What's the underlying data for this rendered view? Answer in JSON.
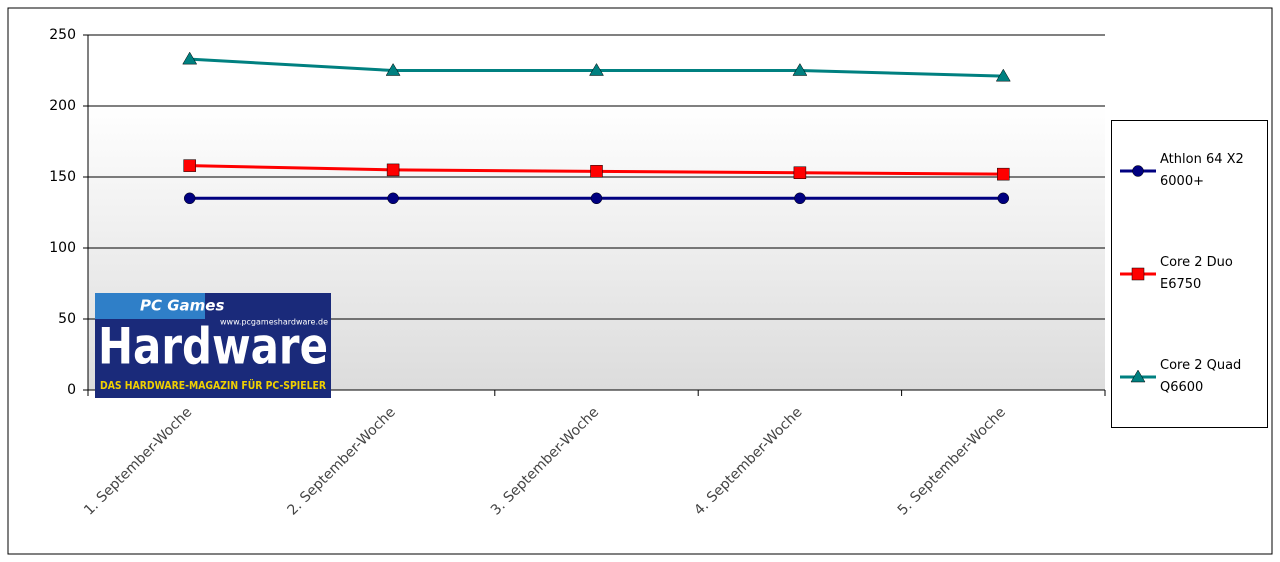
{
  "chart_data": {
    "type": "line",
    "categories": [
      "1. September-Woche",
      "2. September-Woche",
      "3. September-Woche",
      "4. September-Woche",
      "5. September-Woche"
    ],
    "series": [
      {
        "name": "Athlon 64 X2 6000+",
        "color": "#000080",
        "marker": "circle",
        "values": [
          135,
          135,
          135,
          135,
          135
        ]
      },
      {
        "name": "Core 2 Duo E6750",
        "color": "#ff0000",
        "marker": "square",
        "values": [
          158,
          155,
          154,
          153,
          152
        ]
      },
      {
        "name": "Core 2 Quad Q6600",
        "color": "#008080",
        "marker": "triangle",
        "values": [
          233,
          225,
          225,
          225,
          221
        ]
      }
    ],
    "ylim": [
      0,
      250
    ],
    "yticks": [
      0,
      50,
      100,
      150,
      200,
      250
    ],
    "grid": true,
    "legend": "right"
  },
  "watermark": {
    "brand_top": "PC Games",
    "brand": "Hardware",
    "url": "www.pcgameshardware.de",
    "tagline": "DAS HARDWARE-MAGAZIN FÜR PC-SPIELER"
  }
}
